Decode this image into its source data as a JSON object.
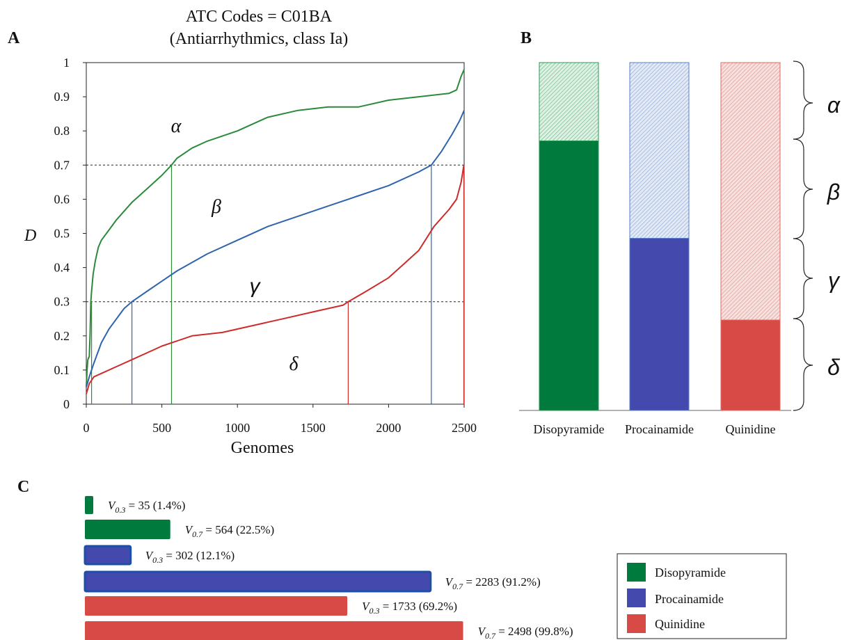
{
  "panel_labels": {
    "a": "A",
    "b": "B",
    "c": "C"
  },
  "colors": {
    "disopyramide": "#007a3d",
    "procainamide": "#4349ad",
    "quinidine": "#d84a45",
    "disopyramide_line": "#2a8a3a",
    "procainamide_line": "#2e63ad",
    "quinidine_line": "#cf2a2a",
    "procainamide_border": "#1d4fa8"
  },
  "chart_data": [
    {
      "type": "line",
      "title": "ATC Codes = C01BA",
      "subtitle": "(Antiarrhythmics, class Ia)",
      "xlabel": "Genomes",
      "ylabel": "D",
      "xlim": [
        0,
        2500
      ],
      "ylim": [
        0,
        1
      ],
      "xticks": [
        "0",
        "500",
        "1000",
        "1500",
        "2000",
        "2500"
      ],
      "yticks": [
        "0",
        "0.1",
        "0.2",
        "0.3",
        "0.4",
        "0.5",
        "0.6",
        "0.7",
        "0.8",
        "0.9",
        "1"
      ],
      "thresholds": [
        0.3,
        0.7
      ],
      "region_labels": [
        "α",
        "β",
        "γ",
        "δ"
      ],
      "series": [
        {
          "key": "disopyramide",
          "points": [
            [
              0,
              0.05
            ],
            [
              5,
              0.1
            ],
            [
              10,
              0.13
            ],
            [
              20,
              0.14
            ],
            [
              25,
              0.2
            ],
            [
              30,
              0.3
            ],
            [
              35,
              0.33
            ],
            [
              45,
              0.38
            ],
            [
              60,
              0.42
            ],
            [
              80,
              0.46
            ],
            [
              100,
              0.48
            ],
            [
              150,
              0.51
            ],
            [
              200,
              0.54
            ],
            [
              300,
              0.59
            ],
            [
              400,
              0.63
            ],
            [
              500,
              0.67
            ],
            [
              564,
              0.7
            ],
            [
              600,
              0.72
            ],
            [
              700,
              0.75
            ],
            [
              800,
              0.77
            ],
            [
              1000,
              0.8
            ],
            [
              1200,
              0.84
            ],
            [
              1400,
              0.86
            ],
            [
              1600,
              0.87
            ],
            [
              1800,
              0.87
            ],
            [
              2000,
              0.89
            ],
            [
              2200,
              0.9
            ],
            [
              2400,
              0.91
            ],
            [
              2450,
              0.92
            ],
            [
              2480,
              0.96
            ],
            [
              2500,
              0.98
            ]
          ]
        },
        {
          "key": "procainamide",
          "points": [
            [
              0,
              0.05
            ],
            [
              20,
              0.08
            ],
            [
              50,
              0.12
            ],
            [
              100,
              0.18
            ],
            [
              150,
              0.22
            ],
            [
              200,
              0.25
            ],
            [
              250,
              0.28
            ],
            [
              302,
              0.3
            ],
            [
              400,
              0.33
            ],
            [
              500,
              0.36
            ],
            [
              600,
              0.39
            ],
            [
              800,
              0.44
            ],
            [
              1000,
              0.48
            ],
            [
              1200,
              0.52
            ],
            [
              1400,
              0.55
            ],
            [
              1600,
              0.58
            ],
            [
              1800,
              0.61
            ],
            [
              2000,
              0.64
            ],
            [
              2200,
              0.68
            ],
            [
              2283,
              0.7
            ],
            [
              2350,
              0.74
            ],
            [
              2420,
              0.79
            ],
            [
              2470,
              0.83
            ],
            [
              2500,
              0.86
            ]
          ]
        },
        {
          "key": "quinidine",
          "points": [
            [
              0,
              0.03
            ],
            [
              20,
              0.06
            ],
            [
              50,
              0.08
            ],
            [
              100,
              0.09
            ],
            [
              200,
              0.11
            ],
            [
              300,
              0.13
            ],
            [
              400,
              0.15
            ],
            [
              500,
              0.17
            ],
            [
              700,
              0.2
            ],
            [
              900,
              0.21
            ],
            [
              1100,
              0.23
            ],
            [
              1300,
              0.25
            ],
            [
              1500,
              0.27
            ],
            [
              1700,
              0.29
            ],
            [
              1733,
              0.3
            ],
            [
              1850,
              0.33
            ],
            [
              2000,
              0.37
            ],
            [
              2100,
              0.41
            ],
            [
              2200,
              0.45
            ],
            [
              2300,
              0.52
            ],
            [
              2400,
              0.57
            ],
            [
              2450,
              0.6
            ],
            [
              2480,
              0.65
            ],
            [
              2498,
              0.7
            ]
          ]
        }
      ],
      "vertical_markers": [
        {
          "key": "disopyramide",
          "x": 35,
          "y": 0.3
        },
        {
          "key": "disopyramide",
          "x": 564,
          "y": 0.7
        },
        {
          "key": "procainamide",
          "x": 302,
          "y": 0.3
        },
        {
          "key": "procainamide",
          "x": 2283,
          "y": 0.7
        },
        {
          "key": "quinidine",
          "x": 1733,
          "y": 0.3
        },
        {
          "key": "quinidine",
          "x": 2498,
          "y": 0.7
        }
      ]
    },
    {
      "type": "bar",
      "categories": [
        "Disopyramide",
        "Procainamide",
        "Quinidine"
      ],
      "keys": [
        "disopyramide",
        "procainamide",
        "quinidine"
      ],
      "solid_fraction": [
        0.775,
        0.495,
        0.26
      ],
      "total": 1.0,
      "brace_labels": [
        "α",
        "β",
        "γ",
        "δ"
      ]
    },
    {
      "type": "bar",
      "orientation": "horizontal",
      "xlim": [
        0,
        2500
      ],
      "bars": [
        {
          "key": "disopyramide",
          "value": 35,
          "label_v": "V",
          "label_sub": "0.3",
          "label_rest": " = 35 (1.4%)"
        },
        {
          "key": "disopyramide",
          "value": 564,
          "label_v": "V",
          "label_sub": "0.7",
          "label_rest": " = 564 (22.5%)"
        },
        {
          "key": "procainamide",
          "value": 302,
          "label_v": "V",
          "label_sub": "0.3",
          "label_rest": " = 302 (12.1%)"
        },
        {
          "key": "procainamide",
          "value": 2283,
          "label_v": "V",
          "label_sub": "0.7",
          "label_rest": " = 2283 (91.2%)"
        },
        {
          "key": "quinidine",
          "value": 1733,
          "label_v": "V",
          "label_sub": "0.3",
          "label_rest": " = 1733 (69.2%)"
        },
        {
          "key": "quinidine",
          "value": 2498,
          "label_v": "V",
          "label_sub": "0.7",
          "label_rest": " = 2498 (99.8%)"
        }
      ],
      "legend": [
        {
          "key": "disopyramide",
          "label": "Disopyramide"
        },
        {
          "key": "procainamide",
          "label": "Procainamide"
        },
        {
          "key": "quinidine",
          "label": "Quinidine"
        }
      ]
    }
  ]
}
